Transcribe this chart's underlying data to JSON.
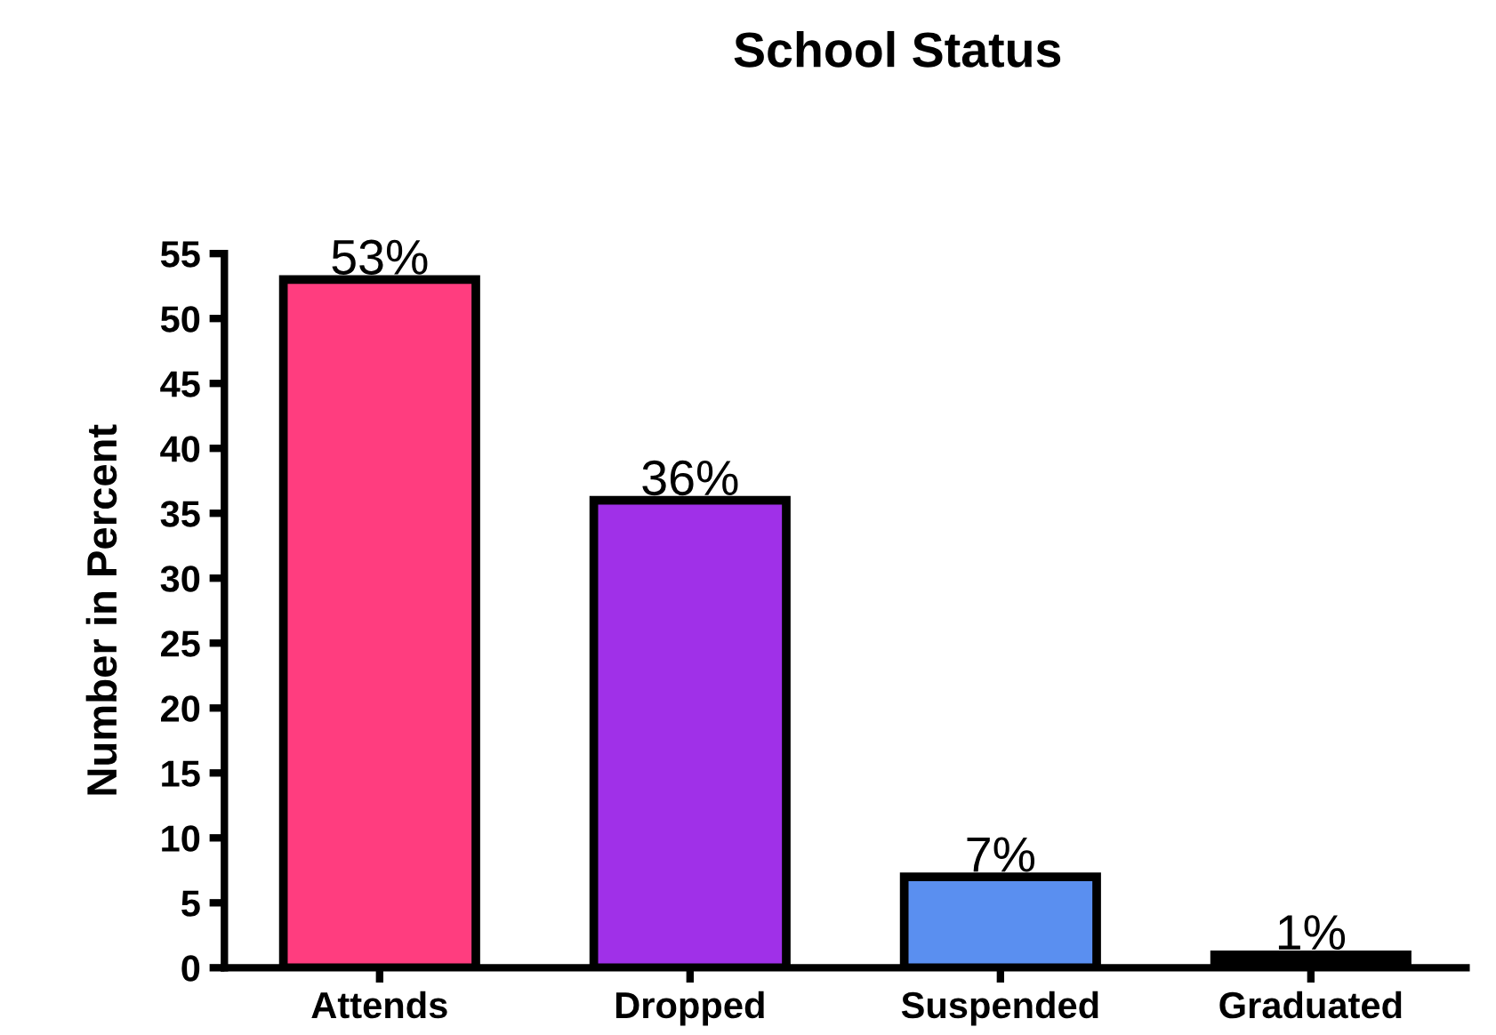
{
  "chart_data": {
    "type": "bar",
    "title": "School Status",
    "ylabel": "Number in Percent",
    "categories": [
      "Attends",
      "Dropped",
      "Suspended",
      "Graduated"
    ],
    "values": [
      53,
      36,
      7,
      1
    ],
    "colors": [
      "#ff3d7f",
      "#a030e8",
      "#5a8ff0",
      "#000000"
    ],
    "value_labels": [
      "53%",
      "36%",
      "7%",
      "1%"
    ],
    "ylim": [
      0,
      55
    ],
    "yticks": [
      0,
      5,
      10,
      15,
      20,
      25,
      30,
      35,
      40,
      45,
      50,
      55
    ],
    "grid": false
  }
}
